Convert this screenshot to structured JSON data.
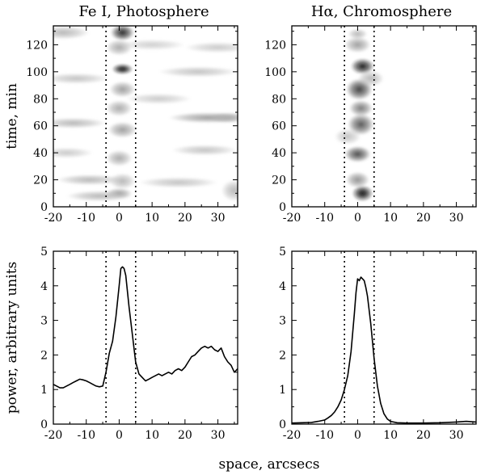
{
  "chart_data": [
    {
      "id": "fe-time",
      "type": "heatmap",
      "title": "Fe I, Photosphere",
      "xlabel": "",
      "ylabel": "time, min",
      "xlim": [
        -20,
        36
      ],
      "ylim": [
        0,
        134
      ],
      "xticks": [
        -20,
        -10,
        0,
        10,
        20,
        30
      ],
      "yticks": [
        0,
        20,
        40,
        60,
        80,
        100,
        120
      ],
      "xtick_labels": [
        "-20",
        "-10",
        "0",
        "10",
        "20",
        "30"
      ],
      "ytick_labels": [
        "0",
        "20",
        "40",
        "60",
        "80",
        "100",
        "120"
      ],
      "vlines": [
        -4,
        5
      ],
      "colormap": "gray-reversed",
      "blobs": [
        {
          "x": 1,
          "y": 129,
          "sx": 1.8,
          "sy": 3,
          "w": 0.9
        },
        {
          "x": 1,
          "y": 102,
          "sx": 1.6,
          "sy": 2,
          "w": 1.0
        },
        {
          "x": -17,
          "y": 129,
          "sx": 4,
          "sy": 2.5,
          "w": 0.3
        },
        {
          "x": 0,
          "y": 118,
          "sx": 2,
          "sy": 3,
          "w": 0.35
        },
        {
          "x": 1,
          "y": 87,
          "sx": 2,
          "sy": 3,
          "w": 0.4
        },
        {
          "x": 0,
          "y": 73,
          "sx": 2,
          "sy": 3,
          "w": 0.35
        },
        {
          "x": 1,
          "y": 57,
          "sx": 2.2,
          "sy": 3,
          "w": 0.4
        },
        {
          "x": 0,
          "y": 36,
          "sx": 2,
          "sy": 3,
          "w": 0.35
        },
        {
          "x": 1,
          "y": 19,
          "sx": 2,
          "sy": 3,
          "w": 0.3
        },
        {
          "x": 0,
          "y": 10,
          "sx": 2,
          "sy": 2,
          "w": 0.4
        },
        {
          "x": 27,
          "y": 66,
          "sx": 6,
          "sy": 2,
          "w": 0.4
        },
        {
          "x": 33,
          "y": 66,
          "sx": 3,
          "sy": 2,
          "w": 0.35
        },
        {
          "x": -14,
          "y": 62,
          "sx": 5,
          "sy": 2,
          "w": 0.3
        },
        {
          "x": -9,
          "y": 20,
          "sx": 5,
          "sy": 2,
          "w": 0.3
        },
        {
          "x": 18,
          "y": 18,
          "sx": 6,
          "sy": 2,
          "w": 0.25
        },
        {
          "x": 26,
          "y": 42,
          "sx": 5,
          "sy": 2,
          "w": 0.25
        },
        {
          "x": -13,
          "y": 95,
          "sx": 5,
          "sy": 2,
          "w": 0.25
        },
        {
          "x": 24,
          "y": 100,
          "sx": 6,
          "sy": 2,
          "w": 0.25
        },
        {
          "x": -6,
          "y": 8,
          "sx": 5,
          "sy": 2,
          "w": 0.3
        },
        {
          "x": 35,
          "y": 12,
          "sx": 2,
          "sy": 4,
          "w": 0.3
        },
        {
          "x": 12,
          "y": 80,
          "sx": 5,
          "sy": 2,
          "w": 0.22
        },
        {
          "x": -16,
          "y": 40,
          "sx": 4,
          "sy": 2,
          "w": 0.22
        },
        {
          "x": 10,
          "y": 120,
          "sx": 5,
          "sy": 2,
          "w": 0.2
        },
        {
          "x": 30,
          "y": 118,
          "sx": 5,
          "sy": 2,
          "w": 0.22
        }
      ]
    },
    {
      "id": "ha-time",
      "type": "heatmap",
      "title": "Hα, Chromosphere",
      "xlabel": "",
      "ylabel": "",
      "xlim": [
        -20,
        36
      ],
      "ylim": [
        0,
        134
      ],
      "xticks": [
        -20,
        -10,
        0,
        10,
        20,
        30
      ],
      "yticks": [
        0,
        20,
        40,
        60,
        80,
        100,
        120
      ],
      "xtick_labels": [
        "-20",
        "-10",
        "0",
        "10",
        "20",
        "30"
      ],
      "ytick_labels": [
        "0",
        "20",
        "40",
        "60",
        "80",
        "100",
        "120"
      ],
      "vlines": [
        -4,
        5
      ],
      "colormap": "gray-reversed",
      "blobs": [
        {
          "x": 1.5,
          "y": 10,
          "sx": 1.6,
          "sy": 3,
          "w": 1.0
        },
        {
          "x": 0,
          "y": 20,
          "sx": 1.8,
          "sy": 3,
          "w": 0.45
        },
        {
          "x": 0,
          "y": 39,
          "sx": 2,
          "sy": 3,
          "w": 0.75
        },
        {
          "x": 1,
          "y": 61,
          "sx": 2,
          "sy": 4,
          "w": 0.7
        },
        {
          "x": 1,
          "y": 73,
          "sx": 1.8,
          "sy": 3,
          "w": 0.55
        },
        {
          "x": 0.5,
          "y": 87,
          "sx": 2,
          "sy": 4,
          "w": 0.8
        },
        {
          "x": 1.5,
          "y": 104,
          "sx": 1.8,
          "sy": 3,
          "w": 0.95
        },
        {
          "x": 0,
          "y": 120,
          "sx": 2,
          "sy": 3,
          "w": 0.4
        },
        {
          "x": 0,
          "y": 128,
          "sx": 1.5,
          "sy": 2,
          "w": 0.3
        },
        {
          "x": 4,
          "y": 95,
          "sx": 2,
          "sy": 3,
          "w": 0.3
        },
        {
          "x": -3,
          "y": 52,
          "sx": 2,
          "sy": 3,
          "w": 0.25
        }
      ]
    },
    {
      "id": "fe-power",
      "type": "line",
      "title": "",
      "xlabel": "",
      "ylabel": "power, arbitrary units",
      "xlim": [
        -20,
        36
      ],
      "ylim": [
        0,
        5
      ],
      "xticks": [
        -20,
        -10,
        0,
        10,
        20,
        30
      ],
      "yticks": [
        0,
        1,
        2,
        3,
        4,
        5
      ],
      "xtick_labels": [
        "-20",
        "-10",
        "0",
        "10",
        "20",
        "30"
      ],
      "ytick_labels": [
        "0",
        "1",
        "2",
        "3",
        "4",
        "5"
      ],
      "vlines": [
        -4,
        5
      ],
      "x": [
        -20,
        -19,
        -18,
        -17,
        -16,
        -15,
        -14,
        -13,
        -12,
        -11,
        -10,
        -9,
        -8,
        -7,
        -6,
        -5,
        -4,
        -3,
        -2,
        -1,
        0,
        0.5,
        1,
        1.5,
        2,
        3,
        4,
        5,
        6,
        7,
        8,
        9,
        10,
        11,
        12,
        13,
        14,
        15,
        16,
        17,
        18,
        19,
        20,
        21,
        22,
        23,
        24,
        25,
        26,
        27,
        28,
        29,
        30,
        31,
        32,
        33,
        34,
        35,
        36
      ],
      "series": [
        {
          "name": "Fe I",
          "values": [
            1.15,
            1.1,
            1.05,
            1.05,
            1.1,
            1.15,
            1.2,
            1.25,
            1.3,
            1.28,
            1.25,
            1.2,
            1.15,
            1.1,
            1.08,
            1.1,
            1.5,
            2.05,
            2.4,
            3.1,
            4.0,
            4.5,
            4.55,
            4.5,
            4.3,
            3.4,
            2.6,
            1.8,
            1.45,
            1.35,
            1.25,
            1.3,
            1.35,
            1.4,
            1.45,
            1.4,
            1.45,
            1.5,
            1.45,
            1.55,
            1.6,
            1.55,
            1.65,
            1.8,
            1.95,
            2.0,
            2.1,
            2.2,
            2.25,
            2.2,
            2.25,
            2.15,
            2.1,
            2.2,
            1.95,
            1.8,
            1.7,
            1.5,
            1.6
          ]
        }
      ]
    },
    {
      "id": "ha-power",
      "type": "line",
      "title": "",
      "xlabel": "",
      "ylabel": "",
      "xlim": [
        -20,
        36
      ],
      "ylim": [
        0,
        5
      ],
      "xticks": [
        -20,
        -10,
        0,
        10,
        20,
        30
      ],
      "yticks": [
        0,
        1,
        2,
        3,
        4,
        5
      ],
      "xtick_labels": [
        "-20",
        "-10",
        "0",
        "10",
        "20",
        "30"
      ],
      "ytick_labels": [
        "0",
        "1",
        "2",
        "3",
        "4",
        "5"
      ],
      "vlines": [
        -4,
        5
      ],
      "x": [
        -20,
        -17,
        -14,
        -12,
        -10,
        -9,
        -8,
        -7,
        -6,
        -5,
        -4,
        -3,
        -2,
        -1,
        -0.5,
        0,
        0.5,
        1,
        1.5,
        2,
        2.5,
        3,
        4,
        5,
        6,
        7,
        8,
        9,
        10,
        12,
        15,
        20,
        25,
        30,
        33,
        36
      ],
      "series": [
        {
          "name": "Hα",
          "values": [
            0.03,
            0.04,
            0.05,
            0.08,
            0.12,
            0.18,
            0.25,
            0.35,
            0.5,
            0.7,
            1.0,
            1.4,
            2.1,
            3.2,
            3.8,
            4.2,
            4.15,
            4.25,
            4.2,
            4.15,
            3.95,
            3.7,
            2.9,
            1.9,
            1.1,
            0.6,
            0.3,
            0.15,
            0.08,
            0.04,
            0.03,
            0.03,
            0.04,
            0.06,
            0.08,
            0.06
          ]
        }
      ]
    }
  ],
  "shared": {
    "xlabel": "space, arcsecs"
  }
}
